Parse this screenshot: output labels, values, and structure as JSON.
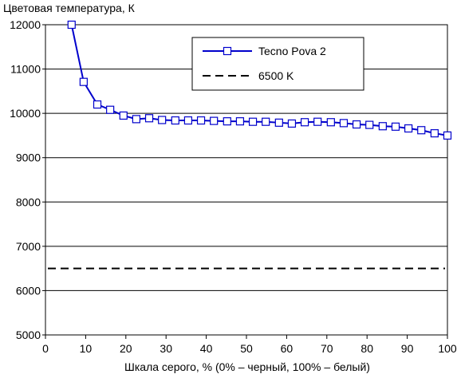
{
  "chart_data": {
    "type": "line",
    "ylabel": "Цветовая температура, К",
    "xlabel": "Шкала серого, % (0% – черный, 100% – белый)",
    "xlim": [
      0,
      100
    ],
    "ylim": [
      5000,
      12000
    ],
    "x_ticks": [
      "0",
      "10",
      "20",
      "30",
      "40",
      "50",
      "60",
      "70",
      "80",
      "90",
      "100"
    ],
    "y_ticks": [
      "5000",
      "6000",
      "7000",
      "8000",
      "9000",
      "10000",
      "11000",
      "12000"
    ],
    "grid": "horizontal",
    "legend_position": "top-right",
    "series": [
      {
        "name": "Tecno Pova 2",
        "color": "#0000cc",
        "marker": "square",
        "points": [
          [
            6.5,
            12000
          ],
          [
            9.5,
            10710
          ],
          [
            12.9,
            10200
          ],
          [
            16.1,
            10080
          ],
          [
            19.4,
            9950
          ],
          [
            22.6,
            9870
          ],
          [
            25.8,
            9890
          ],
          [
            29.0,
            9850
          ],
          [
            32.3,
            9840
          ],
          [
            35.5,
            9840
          ],
          [
            38.7,
            9840
          ],
          [
            41.9,
            9830
          ],
          [
            45.2,
            9820
          ],
          [
            48.4,
            9820
          ],
          [
            51.6,
            9810
          ],
          [
            54.8,
            9810
          ],
          [
            58.1,
            9790
          ],
          [
            61.3,
            9770
          ],
          [
            64.5,
            9800
          ],
          [
            67.7,
            9810
          ],
          [
            71.0,
            9800
          ],
          [
            74.2,
            9780
          ],
          [
            77.4,
            9750
          ],
          [
            80.6,
            9740
          ],
          [
            83.9,
            9710
          ],
          [
            87.1,
            9700
          ],
          [
            90.3,
            9660
          ],
          [
            93.5,
            9620
          ],
          [
            96.8,
            9550
          ],
          [
            100,
            9500
          ]
        ]
      },
      {
        "name": "6500 K",
        "color": "#000000",
        "style": "dashed",
        "points": [
          [
            0,
            6500
          ],
          [
            100,
            6500
          ]
        ]
      }
    ]
  }
}
